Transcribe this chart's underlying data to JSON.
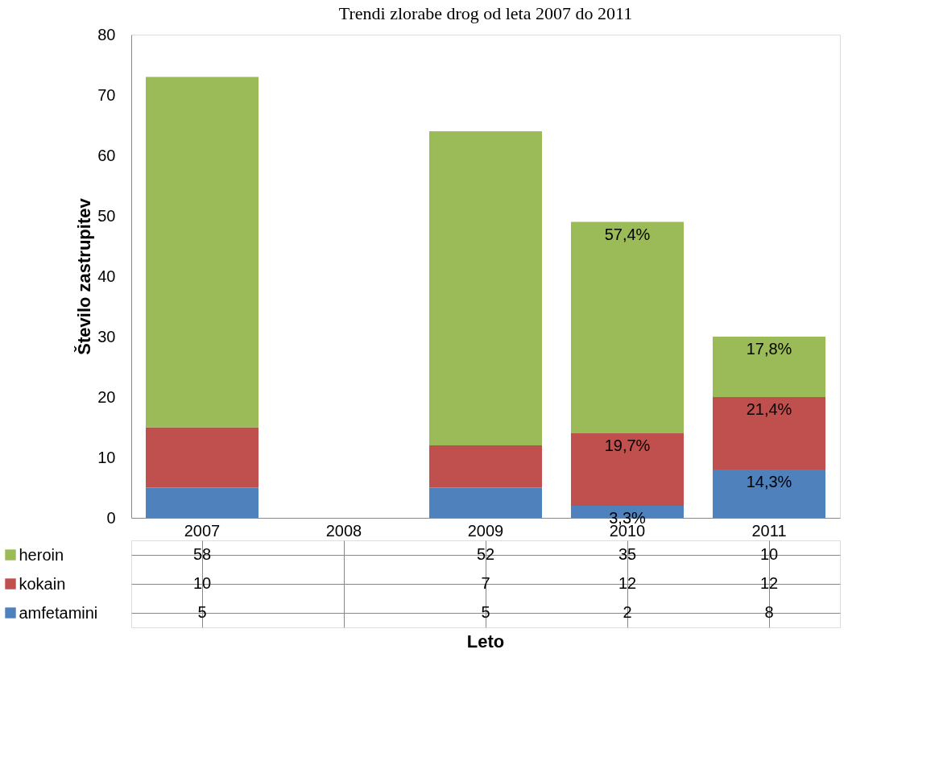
{
  "chart_data": {
    "type": "bar",
    "title": "Trendi zlorabe drog od leta 2007 do 2011",
    "ylabel": "Število zastrupitev",
    "categories": [
      "2007",
      "2008",
      "2009",
      "2010",
      "2011"
    ],
    "stacked": true,
    "ylim": [
      0,
      80
    ],
    "yticks": [
      0,
      10,
      20,
      30,
      40,
      50,
      60,
      70,
      80
    ],
    "grid": false,
    "legend": "bottom",
    "data_labels": true,
    "series": [
      {
        "name": "amfetamini",
        "color": "#4f81bd",
        "values": [
          5,
          null,
          5,
          2,
          8
        ]
      },
      {
        "name": "kokain",
        "color": "#c0504d",
        "values": [
          10,
          null,
          7,
          12,
          12
        ]
      },
      {
        "name": "heroin",
        "color": "#9bbb59",
        "values": [
          58,
          null,
          52,
          35,
          10
        ]
      }
    ],
    "annotations": [
      {
        "text": "3,3%",
        "x": "2010",
        "y": 2
      },
      {
        "text": "19,7%",
        "x": "2010",
        "y": 14
      },
      {
        "text": "57,4%",
        "x": "2010",
        "y": 49
      },
      {
        "text": "14,3%",
        "x": "2011",
        "y": 8
      },
      {
        "text": "21,4%",
        "x": "2011",
        "y": 20
      },
      {
        "text": "17,8%",
        "x": "2011",
        "y": 30
      },
      "Leto"
    ]
  }
}
